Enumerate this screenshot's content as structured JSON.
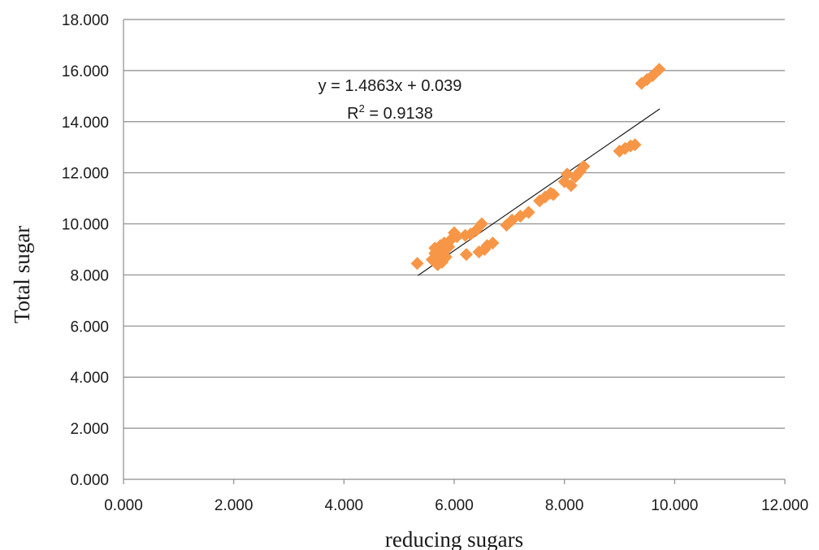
{
  "chart_data": {
    "type": "scatter",
    "xlabel": "reducing sugars",
    "ylabel": "Total sugar",
    "xlim": [
      0,
      12
    ],
    "ylim": [
      0,
      18
    ],
    "x_ticks": [
      "0.000",
      "2.000",
      "4.000",
      "6.000",
      "8.000",
      "10.000",
      "12.000"
    ],
    "y_ticks": [
      "0.000",
      "2.000",
      "4.000",
      "6.000",
      "8.000",
      "10.000",
      "12.000",
      "14.000",
      "16.000",
      "18.000"
    ],
    "grid": "horizontal",
    "marker": "diamond",
    "marker_color": "#F79646",
    "trendline": {
      "type": "linear",
      "slope": 1.4863,
      "intercept": 0.039,
      "x_range": [
        5.34,
        9.73
      ],
      "color": "#1a1a1a",
      "equation": "y = 1.4863x + 0.039",
      "r2_prefix": "R",
      "r2_exp": "2",
      "r2_value": " = 0.9138"
    },
    "points": [
      [
        5.33,
        8.45
      ],
      [
        5.6,
        8.6
      ],
      [
        5.65,
        8.85
      ],
      [
        5.65,
        9.05
      ],
      [
        5.7,
        8.4
      ],
      [
        5.72,
        8.75
      ],
      [
        5.75,
        9.15
      ],
      [
        5.78,
        8.5
      ],
      [
        5.8,
        8.95
      ],
      [
        5.82,
        9.25
      ],
      [
        5.85,
        8.7
      ],
      [
        5.9,
        9.1
      ],
      [
        5.95,
        9.4
      ],
      [
        6.0,
        9.65
      ],
      [
        6.05,
        9.5
      ],
      [
        6.2,
        9.55
      ],
      [
        6.22,
        8.8
      ],
      [
        6.3,
        9.6
      ],
      [
        6.4,
        9.75
      ],
      [
        6.45,
        8.9
      ],
      [
        6.5,
        10.0
      ],
      [
        6.55,
        9.0
      ],
      [
        6.6,
        9.15
      ],
      [
        6.7,
        9.25
      ],
      [
        6.95,
        9.95
      ],
      [
        7.05,
        10.15
      ],
      [
        7.2,
        10.3
      ],
      [
        7.35,
        10.45
      ],
      [
        7.55,
        10.9
      ],
      [
        7.65,
        11.05
      ],
      [
        7.75,
        11.2
      ],
      [
        7.8,
        11.15
      ],
      [
        8.0,
        11.65
      ],
      [
        8.05,
        11.95
      ],
      [
        8.12,
        11.5
      ],
      [
        8.2,
        11.85
      ],
      [
        8.28,
        12.05
      ],
      [
        8.35,
        12.25
      ],
      [
        9.0,
        12.85
      ],
      [
        9.1,
        12.95
      ],
      [
        9.2,
        13.05
      ],
      [
        9.28,
        13.1
      ],
      [
        9.4,
        15.5
      ],
      [
        9.5,
        15.65
      ],
      [
        9.6,
        15.8
      ],
      [
        9.72,
        16.05
      ]
    ]
  }
}
